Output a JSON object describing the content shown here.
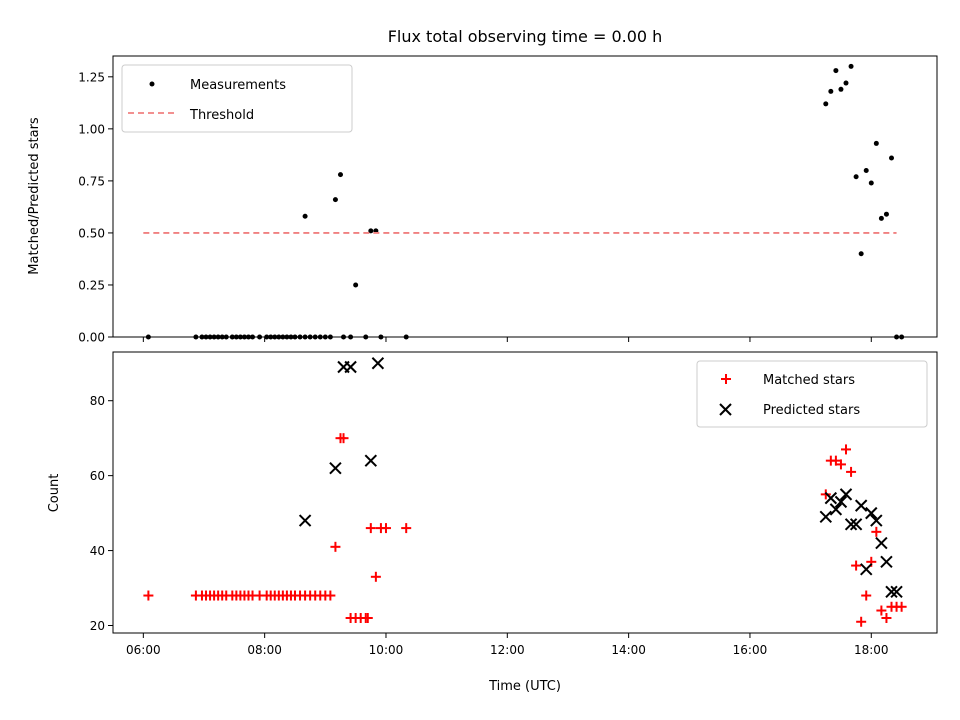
{
  "chart_data": [
    {
      "type": "scatter",
      "title": "Flux total observing time = 0.00 h",
      "xlabel": "",
      "ylabel": "Matched/Predicted stars",
      "xlim": [
        "05:30",
        "19:05"
      ],
      "ylim": [
        0,
        1.35
      ],
      "yticks": [
        "0.00",
        "0.25",
        "0.50",
        "0.75",
        "1.00",
        "1.25"
      ],
      "grid": false,
      "legend_position": "top-left",
      "series": [
        {
          "name": "Measurements",
          "color": "#000000",
          "marker": "dot",
          "x": [
            "06:05",
            "06:52",
            "06:58",
            "07:02",
            "07:06",
            "07:10",
            "07:14",
            "07:18",
            "07:22",
            "07:28",
            "07:32",
            "07:36",
            "07:40",
            "07:44",
            "07:48",
            "07:55",
            "08:02",
            "08:06",
            "08:10",
            "08:14",
            "08:18",
            "08:22",
            "08:26",
            "08:30",
            "08:35",
            "08:40",
            "08:45",
            "08:50",
            "08:55",
            "09:00",
            "09:05",
            "08:40",
            "09:10",
            "09:15",
            "09:25",
            "09:18",
            "09:30",
            "09:40",
            "09:50",
            "09:45",
            "09:55",
            "10:20",
            "17:15",
            "17:20",
            "17:25",
            "17:30",
            "17:35",
            "17:40",
            "17:45",
            "17:50",
            "17:55",
            "18:00",
            "18:05",
            "18:10",
            "18:15",
            "18:20",
            "18:25",
            "18:30"
          ],
          "y": [
            0,
            0,
            0,
            0,
            0,
            0,
            0,
            0,
            0,
            0,
            0,
            0,
            0,
            0,
            0,
            0,
            0,
            0,
            0,
            0,
            0,
            0,
            0,
            0,
            0,
            0,
            0,
            0,
            0,
            0,
            0,
            0.58,
            0.66,
            0.78,
            0,
            0,
            0.25,
            0,
            0.51,
            0.51,
            0,
            0,
            1.12,
            1.18,
            1.28,
            1.19,
            1.22,
            1.3,
            0.77,
            0.4,
            0.8,
            0.74,
            0.93,
            0.57,
            0.59,
            0.86,
            0,
            0
          ]
        },
        {
          "name": "Threshold",
          "color": "#f08080",
          "style": "dashed",
          "x": [
            "06:00",
            "18:25"
          ],
          "y": [
            0.5,
            0.5
          ]
        }
      ]
    },
    {
      "type": "scatter",
      "title": "",
      "xlabel": "Time (UTC)",
      "ylabel": "Count",
      "xlim": [
        "05:30",
        "19:05"
      ],
      "xticks": [
        "06:00",
        "08:00",
        "10:00",
        "12:00",
        "14:00",
        "16:00",
        "18:00"
      ],
      "ylim": [
        18,
        93
      ],
      "yticks": [
        "20",
        "40",
        "60",
        "80"
      ],
      "grid": false,
      "legend_position": "top-right",
      "series": [
        {
          "name": "Matched stars",
          "color": "#ff0000",
          "marker": "plus",
          "x": [
            "06:05",
            "06:52",
            "06:58",
            "07:02",
            "07:06",
            "07:10",
            "07:14",
            "07:18",
            "07:22",
            "07:28",
            "07:32",
            "07:36",
            "07:40",
            "07:44",
            "07:48",
            "07:55",
            "08:02",
            "08:06",
            "08:10",
            "08:14",
            "08:18",
            "08:22",
            "08:26",
            "08:30",
            "08:35",
            "08:40",
            "08:45",
            "08:50",
            "08:55",
            "09:00",
            "09:05",
            "09:10",
            "09:15",
            "09:18",
            "09:25",
            "09:30",
            "09:35",
            "09:40",
            "09:42",
            "09:50",
            "09:45",
            "09:55",
            "10:00",
            "10:20",
            "17:15",
            "17:20",
            "17:25",
            "17:30",
            "17:35",
            "17:40",
            "17:45",
            "17:50",
            "17:55",
            "18:00",
            "18:05",
            "18:10",
            "18:15",
            "18:20",
            "18:25",
            "18:30"
          ],
          "y": [
            28,
            28,
            28,
            28,
            28,
            28,
            28,
            28,
            28,
            28,
            28,
            28,
            28,
            28,
            28,
            28,
            28,
            28,
            28,
            28,
            28,
            28,
            28,
            28,
            28,
            28,
            28,
            28,
            28,
            28,
            28,
            41,
            70,
            70,
            22,
            22,
            22,
            22,
            22,
            33,
            46,
            46,
            46,
            46,
            55,
            64,
            64,
            63,
            67,
            61,
            36,
            21,
            28,
            37,
            45,
            24,
            22,
            25,
            25,
            25
          ]
        },
        {
          "name": "Predicted stars",
          "color": "#000000",
          "marker": "x",
          "x": [
            "08:40",
            "09:10",
            "09:18",
            "09:25",
            "09:45",
            "09:52",
            "17:15",
            "17:20",
            "17:25",
            "17:30",
            "17:35",
            "17:40",
            "17:45",
            "17:50",
            "17:55",
            "18:00",
            "18:05",
            "18:10",
            "18:15",
            "18:20",
            "18:25"
          ],
          "y": [
            48,
            62,
            89,
            89,
            64,
            90,
            49,
            54,
            51,
            53,
            55,
            47,
            47,
            52,
            35,
            50,
            48,
            42,
            37,
            29,
            29
          ]
        }
      ]
    }
  ]
}
